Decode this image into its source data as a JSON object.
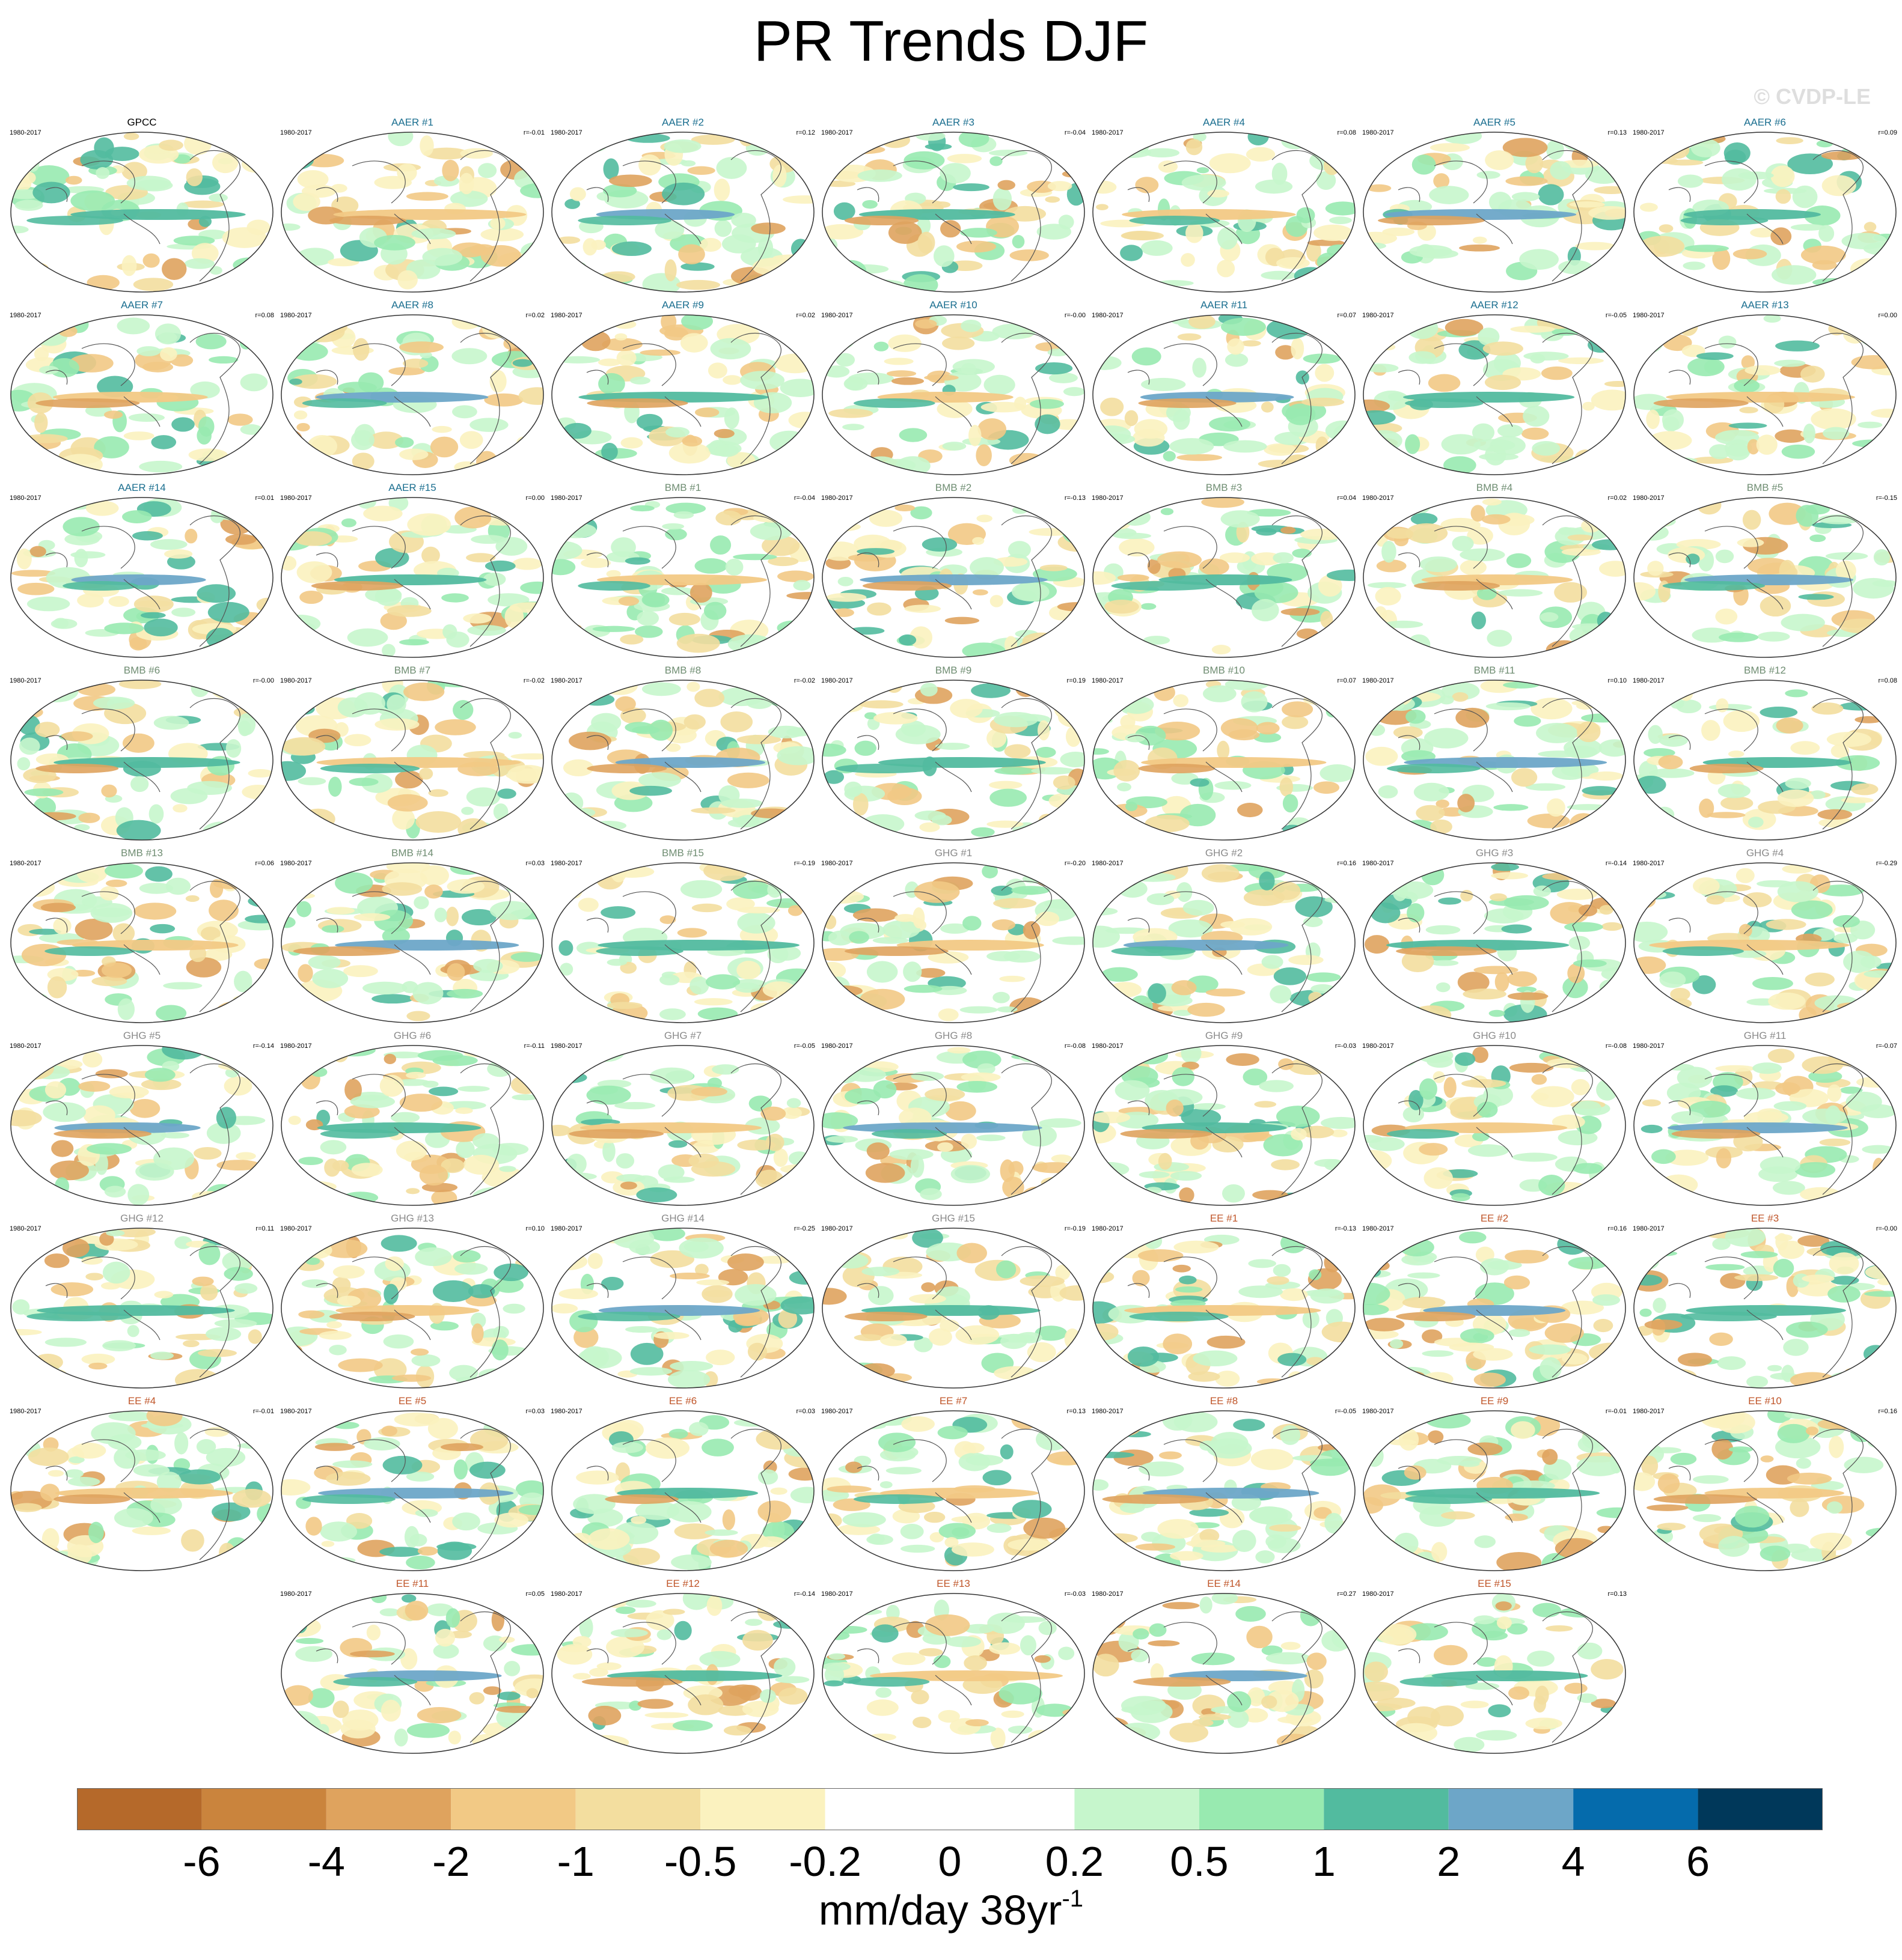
{
  "title": "PR Trends DJF",
  "watermark": "© CVDP-LE",
  "colorbar": {
    "ticks": [
      "-6",
      "-4",
      "-2",
      "-1",
      "-0.5",
      "-0.2",
      "0",
      "0.2",
      "0.5",
      "1",
      "2",
      "4",
      "6"
    ],
    "colors": [
      "#b5692a",
      "#ca843d",
      "#dfa35e",
      "#f2c985",
      "#f3de9f",
      "#fbf2bf",
      "#ffffff",
      "#ffffff",
      "#c6f6cc",
      "#98eab0",
      "#52bb9f",
      "#6da6c8",
      "#056bac",
      "#00385a"
    ],
    "units_text": "mm/day 38yr",
    "units_superscript": "-1"
  },
  "groups": {
    "GPCC": "#000000",
    "AAER": "#1a6e8f",
    "BMB": "#6f8d72",
    "GHG": "#8a8a8a",
    "EE": "#c0562a"
  },
  "chart_data": {
    "type": "heatmap",
    "title": "PR Trends DJF",
    "variable": "precipitation trend",
    "season": "DJF",
    "period": "1980-2017",
    "units": "mm/day 38yr-1",
    "contour_levels": [
      -6,
      -4,
      -2,
      -1,
      -0.5,
      -0.2,
      0,
      0.2,
      0.5,
      1,
      2,
      4,
      6
    ],
    "panels": [
      {
        "name": "GPCC",
        "group": "GPCC",
        "years": "1980-2017",
        "r": ""
      },
      {
        "name": "AAER #1",
        "group": "AAER",
        "years": "1980-2017",
        "r": "r=-0.01"
      },
      {
        "name": "AAER #2",
        "group": "AAER",
        "years": "1980-2017",
        "r": "r=0.12"
      },
      {
        "name": "AAER #3",
        "group": "AAER",
        "years": "1980-2017",
        "r": "r=-0.04"
      },
      {
        "name": "AAER #4",
        "group": "AAER",
        "years": "1980-2017",
        "r": "r=0.08"
      },
      {
        "name": "AAER #5",
        "group": "AAER",
        "years": "1980-2017",
        "r": "r=0.13"
      },
      {
        "name": "AAER #6",
        "group": "AAER",
        "years": "1980-2017",
        "r": "r=0.09"
      },
      {
        "name": "AAER #7",
        "group": "AAER",
        "years": "1980-2017",
        "r": "r=0.08"
      },
      {
        "name": "AAER #8",
        "group": "AAER",
        "years": "1980-2017",
        "r": "r=0.02"
      },
      {
        "name": "AAER #9",
        "group": "AAER",
        "years": "1980-2017",
        "r": "r=0.02"
      },
      {
        "name": "AAER #10",
        "group": "AAER",
        "years": "1980-2017",
        "r": "r=-0.00"
      },
      {
        "name": "AAER #11",
        "group": "AAER",
        "years": "1980-2017",
        "r": "r=0.07"
      },
      {
        "name": "AAER #12",
        "group": "AAER",
        "years": "1980-2017",
        "r": "r=-0.05"
      },
      {
        "name": "AAER #13",
        "group": "AAER",
        "years": "1980-2017",
        "r": "r=0.00"
      },
      {
        "name": "AAER #14",
        "group": "AAER",
        "years": "1980-2017",
        "r": "r=0.01"
      },
      {
        "name": "AAER #15",
        "group": "AAER",
        "years": "1980-2017",
        "r": "r=0.00"
      },
      {
        "name": "BMB #1",
        "group": "BMB",
        "years": "1980-2017",
        "r": "r=-0.04"
      },
      {
        "name": "BMB #2",
        "group": "BMB",
        "years": "1980-2017",
        "r": "r=-0.13"
      },
      {
        "name": "BMB #3",
        "group": "BMB",
        "years": "1980-2017",
        "r": "r=0.04"
      },
      {
        "name": "BMB #4",
        "group": "BMB",
        "years": "1980-2017",
        "r": "r=0.02"
      },
      {
        "name": "BMB #5",
        "group": "BMB",
        "years": "1980-2017",
        "r": "r=-0.15"
      },
      {
        "name": "BMB #6",
        "group": "BMB",
        "years": "1980-2017",
        "r": "r=-0.00"
      },
      {
        "name": "BMB #7",
        "group": "BMB",
        "years": "1980-2017",
        "r": "r=-0.02"
      },
      {
        "name": "BMB #8",
        "group": "BMB",
        "years": "1980-2017",
        "r": "r=-0.02"
      },
      {
        "name": "BMB #9",
        "group": "BMB",
        "years": "1980-2017",
        "r": "r=0.19"
      },
      {
        "name": "BMB #10",
        "group": "BMB",
        "years": "1980-2017",
        "r": "r=0.07"
      },
      {
        "name": "BMB #11",
        "group": "BMB",
        "years": "1980-2017",
        "r": "r=0.10"
      },
      {
        "name": "BMB #12",
        "group": "BMB",
        "years": "1980-2017",
        "r": "r=0.08"
      },
      {
        "name": "BMB #13",
        "group": "BMB",
        "years": "1980-2017",
        "r": "r=0.06"
      },
      {
        "name": "BMB #14",
        "group": "BMB",
        "years": "1980-2017",
        "r": "r=0.03"
      },
      {
        "name": "BMB #15",
        "group": "BMB",
        "years": "1980-2017",
        "r": "r=-0.19"
      },
      {
        "name": "GHG #1",
        "group": "GHG",
        "years": "1980-2017",
        "r": "r=-0.20"
      },
      {
        "name": "GHG #2",
        "group": "GHG",
        "years": "1980-2017",
        "r": "r=0.16"
      },
      {
        "name": "GHG #3",
        "group": "GHG",
        "years": "1980-2017",
        "r": "r=-0.14"
      },
      {
        "name": "GHG #4",
        "group": "GHG",
        "years": "1980-2017",
        "r": "r=-0.29"
      },
      {
        "name": "GHG #5",
        "group": "GHG",
        "years": "1980-2017",
        "r": "r=-0.14"
      },
      {
        "name": "GHG #6",
        "group": "GHG",
        "years": "1980-2017",
        "r": "r=-0.11"
      },
      {
        "name": "GHG #7",
        "group": "GHG",
        "years": "1980-2017",
        "r": "r=-0.05"
      },
      {
        "name": "GHG #8",
        "group": "GHG",
        "years": "1980-2017",
        "r": "r=-0.08"
      },
      {
        "name": "GHG #9",
        "group": "GHG",
        "years": "1980-2017",
        "r": "r=-0.03"
      },
      {
        "name": "GHG #10",
        "group": "GHG",
        "years": "1980-2017",
        "r": "r=-0.08"
      },
      {
        "name": "GHG #11",
        "group": "GHG",
        "years": "1980-2017",
        "r": "r=-0.07"
      },
      {
        "name": "GHG #12",
        "group": "GHG",
        "years": "1980-2017",
        "r": "r=0.11"
      },
      {
        "name": "GHG #13",
        "group": "GHG",
        "years": "1980-2017",
        "r": "r=0.10"
      },
      {
        "name": "GHG #14",
        "group": "GHG",
        "years": "1980-2017",
        "r": "r=-0.25"
      },
      {
        "name": "GHG #15",
        "group": "GHG",
        "years": "1980-2017",
        "r": "r=-0.19"
      },
      {
        "name": "EE #1",
        "group": "EE",
        "years": "1980-2017",
        "r": "r=-0.13"
      },
      {
        "name": "EE #2",
        "group": "EE",
        "years": "1980-2017",
        "r": "r=0.16"
      },
      {
        "name": "EE #3",
        "group": "EE",
        "years": "1980-2017",
        "r": "r=-0.00"
      },
      {
        "name": "EE #4",
        "group": "EE",
        "years": "1980-2017",
        "r": "r=-0.01"
      },
      {
        "name": "EE #5",
        "group": "EE",
        "years": "1980-2017",
        "r": "r=0.03"
      },
      {
        "name": "EE #6",
        "group": "EE",
        "years": "1980-2017",
        "r": "r=0.03"
      },
      {
        "name": "EE #7",
        "group": "EE",
        "years": "1980-2017",
        "r": "r=0.13"
      },
      {
        "name": "EE #8",
        "group": "EE",
        "years": "1980-2017",
        "r": "r=-0.05"
      },
      {
        "name": "EE #9",
        "group": "EE",
        "years": "1980-2017",
        "r": "r=-0.01"
      },
      {
        "name": "EE #10",
        "group": "EE",
        "years": "1980-2017",
        "r": "r=0.16"
      },
      {
        "name": "EE #11",
        "group": "EE",
        "years": "1980-2017",
        "r": "r=0.05"
      },
      {
        "name": "EE #12",
        "group": "EE",
        "years": "1980-2017",
        "r": "r=-0.14"
      },
      {
        "name": "EE #13",
        "group": "EE",
        "years": "1980-2017",
        "r": "r=-0.03"
      },
      {
        "name": "EE #14",
        "group": "EE",
        "years": "1980-2017",
        "r": "r=0.27"
      },
      {
        "name": "EE #15",
        "group": "EE",
        "years": "1980-2017",
        "r": "r=0.13"
      }
    ]
  }
}
